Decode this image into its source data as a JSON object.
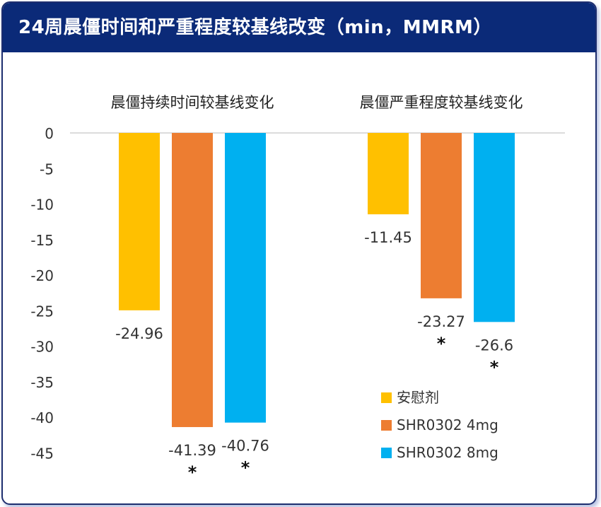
{
  "header": {
    "title": "24周晨僵时间和严重程度较基线改变（min，MMRM）"
  },
  "colors": {
    "header_bg": "#0b2a78",
    "placebo": "#ffc000",
    "dose_4mg": "#ed7d31",
    "dose_8mg": "#00b0f0"
  },
  "chart_data": {
    "type": "bar",
    "categories": [
      "晨僵持续时间较基线变化",
      "晨僵严重程度较基线变化"
    ],
    "series": [
      {
        "name": "安慰剂",
        "values": [
          -24.96,
          -11.45
        ],
        "labels": [
          "-24.96",
          "-11.45"
        ],
        "significant": [
          false,
          false
        ]
      },
      {
        "name": "SHR0302 4mg",
        "values": [
          -41.39,
          -23.27
        ],
        "labels": [
          "-41.39",
          "-23.27"
        ],
        "significant": [
          true,
          true
        ]
      },
      {
        "name": "SHR0302 8mg",
        "values": [
          -40.76,
          -26.6
        ],
        "labels": [
          "-40.76",
          "-26.6"
        ],
        "significant": [
          true,
          true
        ]
      }
    ],
    "significance_marker": "*",
    "ylim": [
      -45,
      0
    ],
    "yticks": [
      "0",
      "-5",
      "-10",
      "-15",
      "-20",
      "-25",
      "-30",
      "-35",
      "-40",
      "-45"
    ],
    "legend_position": "bottom-right",
    "grid": false
  }
}
